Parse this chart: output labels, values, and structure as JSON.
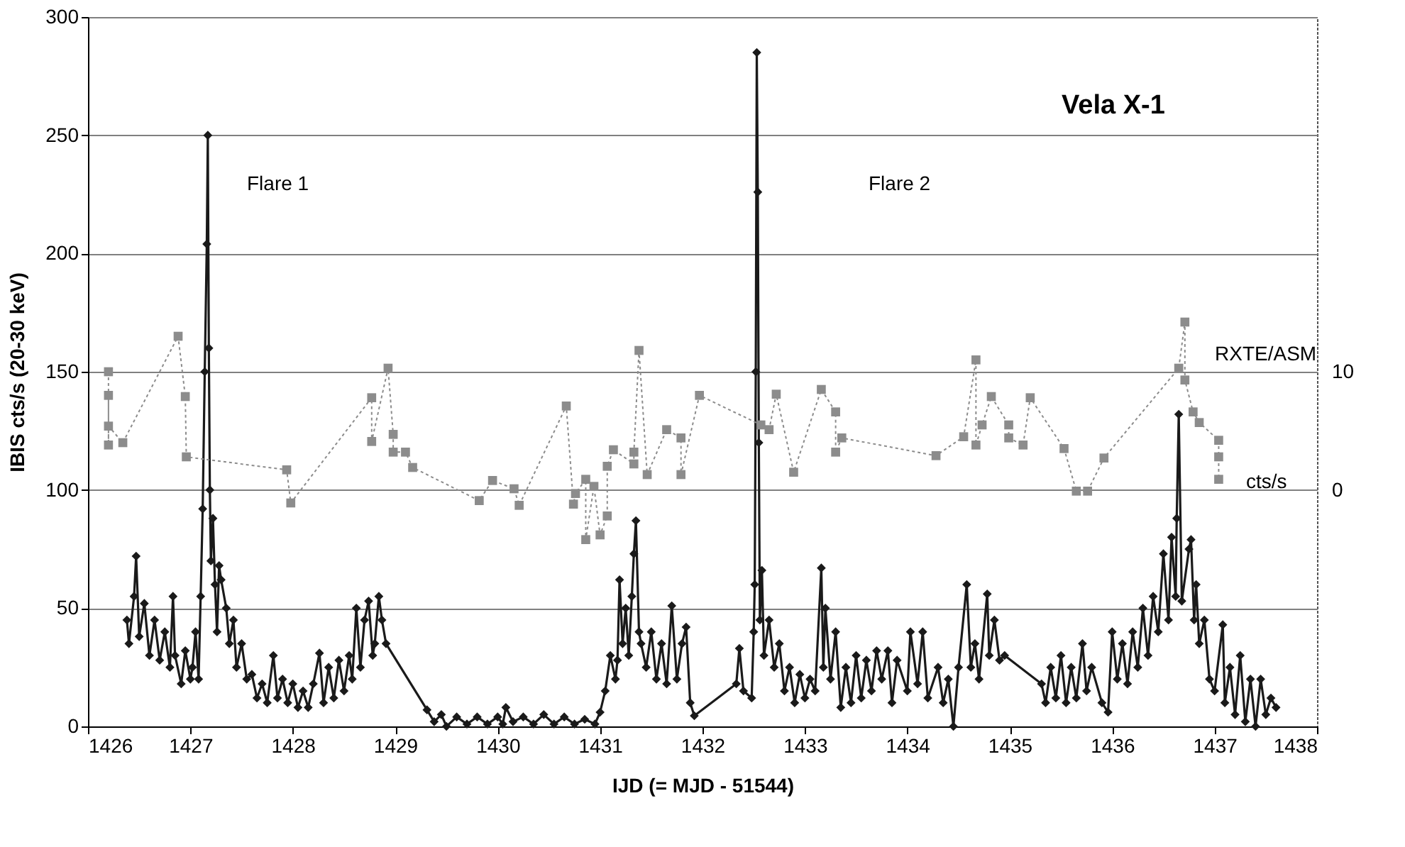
{
  "chart_data": {
    "type": "line",
    "title": "Vela X-1",
    "xlabel": "IJD (= MJD - 51544)",
    "ylabel": "IBIS cts/s (20-30 keV)",
    "xlim": [
      1426,
      1438
    ],
    "xticks": [
      1426,
      1427,
      1428,
      1429,
      1430,
      1431,
      1432,
      1433,
      1434,
      1435,
      1436,
      1437,
      1438
    ],
    "ylim": [
      0,
      300
    ],
    "yticks": [
      0,
      50,
      100,
      150,
      200,
      250,
      300
    ],
    "y2lim": [
      -20,
      40
    ],
    "y2ticks": [
      0,
      10
    ],
    "grid": "y",
    "annotations": [
      "Flare 1",
      "Flare 2",
      "cts/s"
    ],
    "series": [
      {
        "color": "#1a1a1a",
        "marker": "diamond",
        "line_style": "solid",
        "x": [
          1426.38,
          1426.4,
          1426.45,
          1426.47,
          1426.5,
          1426.55,
          1426.6,
          1426.65,
          1426.7,
          1426.75,
          1426.8,
          1426.83,
          1426.85,
          1426.91,
          1426.95,
          1427.0,
          1427.02,
          1427.05,
          1427.08,
          1427.1,
          1427.12,
          1427.14,
          1427.16,
          1427.17,
          1427.18,
          1427.19,
          1427.2,
          1427.22,
          1427.24,
          1427.26,
          1427.28,
          1427.3,
          1427.35,
          1427.38,
          1427.42,
          1427.45,
          1427.5,
          1427.55,
          1427.6,
          1427.65,
          1427.7,
          1427.75,
          1427.81,
          1427.85,
          1427.9,
          1427.95,
          1428.0,
          1428.05,
          1428.1,
          1428.15,
          1428.2,
          1428.26,
          1428.3,
          1428.35,
          1428.4,
          1428.45,
          1428.5,
          1428.55,
          1428.58,
          1428.62,
          1428.66,
          1428.7,
          1428.74,
          1428.78,
          1428.8,
          1428.84,
          1428.87,
          1428.91,
          1429.31,
          1429.38,
          1429.45,
          1429.5,
          1429.6,
          1429.7,
          1429.8,
          1429.9,
          1430.0,
          1430.05,
          1430.08,
          1430.15,
          1430.25,
          1430.35,
          1430.45,
          1430.55,
          1430.65,
          1430.75,
          1430.85,
          1430.95,
          1431.0,
          1431.05,
          1431.1,
          1431.15,
          1431.17,
          1431.19,
          1431.22,
          1431.25,
          1431.28,
          1431.31,
          1431.33,
          1431.35,
          1431.38,
          1431.4,
          1431.45,
          1431.5,
          1431.55,
          1431.6,
          1431.65,
          1431.7,
          1431.75,
          1431.8,
          1431.84,
          1431.88,
          1431.92,
          1432.33,
          1432.36,
          1432.4,
          1432.48,
          1432.5,
          1432.51,
          1432.52,
          1432.53,
          1432.54,
          1432.55,
          1432.56,
          1432.58,
          1432.6,
          1432.65,
          1432.7,
          1432.75,
          1432.8,
          1432.85,
          1432.9,
          1432.95,
          1433.0,
          1433.05,
          1433.1,
          1433.16,
          1433.18,
          1433.2,
          1433.25,
          1433.3,
          1433.35,
          1433.4,
          1433.45,
          1433.5,
          1433.55,
          1433.6,
          1433.65,
          1433.7,
          1433.75,
          1433.81,
          1433.85,
          1433.9,
          1434.0,
          1434.03,
          1434.1,
          1434.15,
          1434.2,
          1434.3,
          1434.35,
          1434.4,
          1434.45,
          1434.5,
          1434.58,
          1434.62,
          1434.66,
          1434.7,
          1434.78,
          1434.8,
          1434.85,
          1434.9,
          1434.95,
          1435.31,
          1435.35,
          1435.4,
          1435.45,
          1435.5,
          1435.55,
          1435.6,
          1435.65,
          1435.71,
          1435.75,
          1435.8,
          1435.9,
          1435.96,
          1436.0,
          1436.05,
          1436.1,
          1436.15,
          1436.2,
          1436.25,
          1436.3,
          1436.35,
          1436.4,
          1436.45,
          1436.5,
          1436.55,
          1436.58,
          1436.62,
          1436.63,
          1436.65,
          1436.68,
          1436.75,
          1436.77,
          1436.8,
          1436.82,
          1436.85,
          1436.9,
          1436.95,
          1437.0,
          1437.08,
          1437.1,
          1437.15,
          1437.2,
          1437.25,
          1437.3,
          1437.35,
          1437.4,
          1437.45,
          1437.5,
          1437.55,
          1437.6
        ],
        "values": [
          45,
          35,
          55,
          72,
          38,
          52,
          30,
          45,
          28,
          40,
          25,
          55,
          30,
          18,
          32,
          20,
          25,
          40,
          20,
          55,
          92,
          150,
          204,
          250,
          160,
          100,
          70,
          88,
          60,
          40,
          68,
          62,
          50,
          35,
          45,
          25,
          35,
          20,
          22,
          12,
          18,
          10,
          30,
          12,
          20,
          10,
          18,
          8,
          15,
          8,
          18,
          31,
          10,
          25,
          12,
          28,
          15,
          30,
          20,
          50,
          25,
          45,
          53,
          30,
          35,
          55,
          45,
          35,
          7,
          2,
          5,
          0,
          4,
          1,
          4,
          1,
          4,
          1,
          8,
          2,
          4,
          1,
          5,
          1,
          4,
          1,
          3,
          1,
          6,
          15,
          30,
          20,
          28,
          62,
          35,
          50,
          30,
          55,
          73,
          87,
          40,
          35,
          25,
          40,
          20,
          35,
          18,
          51,
          20,
          35,
          42,
          10,
          4.5,
          18,
          33,
          15,
          12,
          40,
          60,
          150,
          285,
          226,
          120,
          45,
          66,
          30,
          45,
          25,
          35,
          15,
          25,
          10,
          22,
          12,
          20,
          15,
          67,
          25,
          50,
          20,
          40,
          8,
          25,
          10,
          30,
          12,
          28,
          15,
          32,
          20,
          32,
          10,
          28,
          15,
          40,
          18,
          40,
          12,
          25,
          10,
          20,
          0,
          25,
          60,
          25,
          35,
          20,
          56,
          30,
          45,
          28,
          30,
          18,
          10,
          25,
          12,
          30,
          10,
          25,
          12,
          35,
          15,
          25,
          10,
          6,
          40,
          20,
          35,
          18,
          40,
          25,
          50,
          30,
          55,
          40,
          73,
          45,
          80,
          55,
          88,
          132,
          53,
          75,
          79,
          45,
          60,
          35,
          45,
          20,
          15,
          43,
          10,
          25,
          5,
          30,
          2,
          20,
          0,
          20,
          5,
          12,
          8
        ]
      },
      {
        "name": "RXTE/ASM",
        "axis": "y2",
        "color": "#8c8c8c",
        "marker": "square",
        "line_style": "dotted",
        "x": [
          1426.2,
          1426.2,
          1426.2,
          1426.2,
          1426.34,
          1426.88,
          1426.95,
          1426.96,
          1427.94,
          1427.98,
          1428.77,
          1428.77,
          1428.93,
          1428.98,
          1428.98,
          1429.1,
          1429.17,
          1429.82,
          1429.95,
          1430.16,
          1430.21,
          1430.67,
          1430.74,
          1430.76,
          1430.86,
          1430.86,
          1430.94,
          1431.0,
          1431.07,
          1431.07,
          1431.13,
          1431.33,
          1431.33,
          1431.38,
          1431.46,
          1431.65,
          1431.79,
          1431.79,
          1431.97,
          1432.57,
          1432.65,
          1432.72,
          1432.89,
          1433.16,
          1433.3,
          1433.3,
          1433.36,
          1434.28,
          1434.55,
          1434.67,
          1434.67,
          1434.73,
          1434.82,
          1434.99,
          1434.99,
          1435.13,
          1435.2,
          1435.53,
          1435.65,
          1435.76,
          1435.92,
          1436.65,
          1436.71,
          1436.71,
          1436.79,
          1436.85,
          1437.04,
          1437.04,
          1437.04
        ],
        "values": [
          10.0,
          3.8,
          8.0,
          5.4,
          4.0,
          13.0,
          7.9,
          2.8,
          1.7,
          -1.1,
          7.8,
          4.1,
          10.3,
          4.7,
          3.2,
          3.2,
          1.9,
          -0.9,
          0.8,
          0.1,
          -1.3,
          7.1,
          -1.2,
          -0.3,
          0.9,
          -4.2,
          0.3,
          -3.8,
          -2.2,
          2.0,
          3.4,
          2.2,
          3.2,
          11.8,
          1.3,
          5.1,
          4.4,
          1.3,
          8.0,
          5.5,
          5.1,
          8.1,
          1.5,
          8.5,
          6.6,
          3.2,
          4.4,
          2.9,
          4.5,
          11.0,
          3.8,
          5.5,
          7.9,
          5.5,
          4.4,
          3.8,
          7.8,
          3.5,
          -0.1,
          -0.1,
          2.7,
          10.3,
          14.2,
          9.3,
          6.6,
          5.7,
          4.2,
          2.8,
          0.9
        ]
      }
    ]
  }
}
